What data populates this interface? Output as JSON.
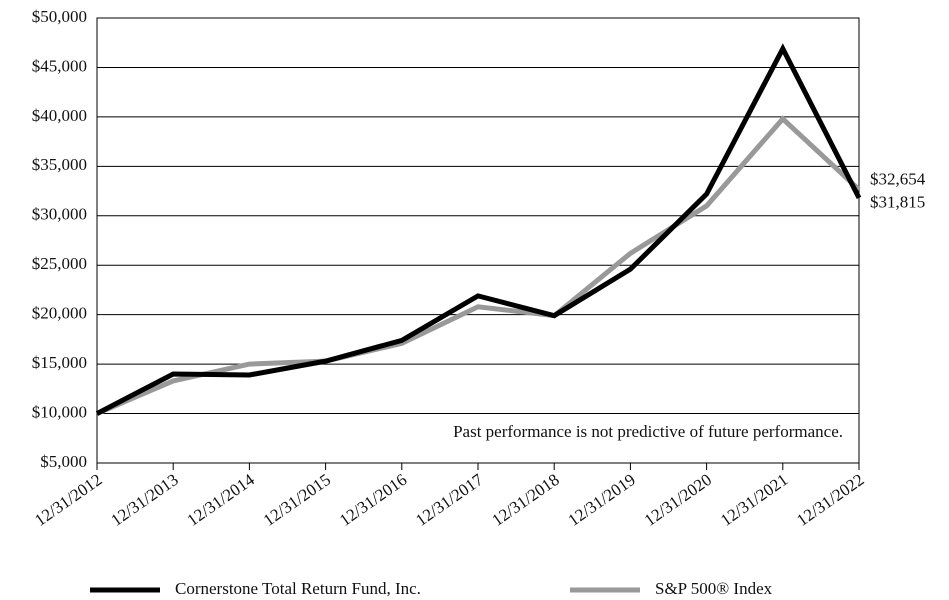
{
  "chart_data": {
    "type": "line",
    "annotation": "Past performance is not predictive of future performance.",
    "categories": [
      "12/31/2012",
      "12/31/2013",
      "12/31/2014",
      "12/31/2015",
      "12/31/2016",
      "12/31/2017",
      "12/31/2018",
      "12/31/2019",
      "12/31/2020",
      "12/31/2021",
      "12/31/2022"
    ],
    "series": [
      {
        "name": "Cornerstone Total Return Fund, Inc.",
        "color": "#000000",
        "values": [
          10000,
          14000,
          13900,
          15300,
          17400,
          21900,
          19900,
          24600,
          32200,
          46900,
          31815
        ],
        "value_labels": [
          null,
          null,
          null,
          null,
          null,
          null,
          null,
          null,
          null,
          null,
          "$31,815"
        ]
      },
      {
        "name": "S&P 500® Index",
        "color": "#999999",
        "values": [
          10000,
          13300,
          15000,
          15300,
          17100,
          20800,
          19900,
          26200,
          31000,
          39800,
          32654
        ],
        "value_labels": [
          null,
          null,
          null,
          null,
          null,
          null,
          null,
          null,
          null,
          null,
          "$32,654"
        ]
      }
    ],
    "ylim": [
      5000,
      50000
    ],
    "yticks": [
      {
        "value": 5000,
        "label": "$5,000"
      },
      {
        "value": 10000,
        "label": "$10,000"
      },
      {
        "value": 15000,
        "label": "$15,000"
      },
      {
        "value": 20000,
        "label": "$20,000"
      },
      {
        "value": 25000,
        "label": "$25,000"
      },
      {
        "value": 30000,
        "label": "$30,000"
      },
      {
        "value": 35000,
        "label": "$35,000"
      },
      {
        "value": 40000,
        "label": "$40,000"
      },
      {
        "value": 45000,
        "label": "$45,000"
      },
      {
        "value": 50000,
        "label": "$50,000"
      }
    ],
    "grid": true
  }
}
